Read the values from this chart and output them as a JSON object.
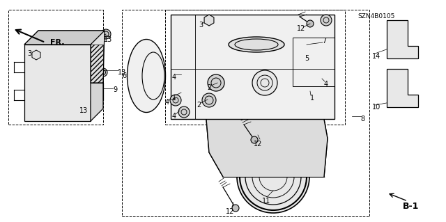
{
  "background_color": "#ffffff",
  "fig_width": 6.4,
  "fig_height": 3.19,
  "diagram_id": "SZN4B0105"
}
